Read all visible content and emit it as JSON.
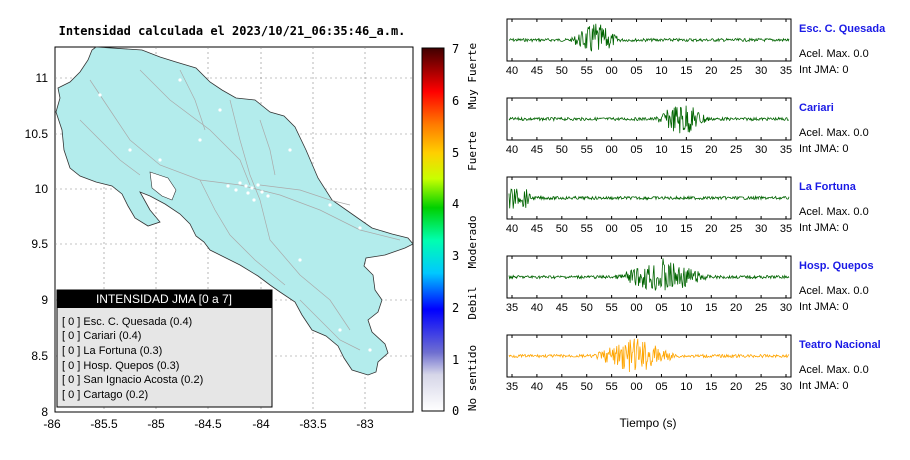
{
  "map": {
    "title": "Intensidad calculada el 2023/10/21_06:35:46_a.m.",
    "x_ticks": [
      "-86",
      "-85.5",
      "-85",
      "-84.5",
      "-84",
      "-83.5",
      "-83"
    ],
    "y_ticks": [
      "11",
      "10.5",
      "10",
      "9.5",
      "9",
      "8.5",
      "8"
    ],
    "land_color": "#b3ecec",
    "legend": {
      "title": "INTENSIDAD JMA [0 a 7]",
      "items": [
        "[ 0 ]  Esc. C. Quesada (0.4)",
        "[ 0 ]  Cariari (0.4)",
        "[ 0 ]  La Fortuna (0.3)",
        "[ 0 ]  Hosp. Quepos (0.3)",
        "[ 0 ]  San Ignacio Acosta (0.2)",
        "[ 0 ]  Cartago (0.2)"
      ]
    }
  },
  "colorbar": {
    "ticks": [
      "0",
      "1",
      "2",
      "3",
      "4",
      "5",
      "6",
      "7"
    ],
    "labels": [
      "No sentido",
      "Debil",
      "Moderado",
      "Fuerte",
      "Muy Fuerte"
    ]
  },
  "chart_data": {
    "type": "line",
    "xlabel": "Tiempo (s)",
    "series": [
      {
        "name": "Esc. C. Quesada",
        "accel_label": "Acel. Max. 0.0",
        "int_label": "Int JMA: 0",
        "color": "#006400",
        "ticks": [
          "40",
          "45",
          "50",
          "55",
          "00",
          "05",
          "10",
          "15",
          "20",
          "25",
          "30",
          "35"
        ],
        "peak_region": [
          0.22,
          0.4
        ]
      },
      {
        "name": "Cariari",
        "accel_label": "Acel. Max. 0.0",
        "int_label": "Int JMA: 0",
        "color": "#006400",
        "ticks": [
          "40",
          "45",
          "50",
          "55",
          "00",
          "05",
          "10",
          "15",
          "20",
          "25",
          "30",
          "35"
        ],
        "peak_region": [
          0.52,
          0.72
        ]
      },
      {
        "name": "La Fortuna",
        "accel_label": "Acel. Max. 0.0",
        "int_label": "Int JMA: 0",
        "color": "#006400",
        "ticks": [
          "40",
          "45",
          "50",
          "55",
          "00",
          "05",
          "10",
          "15",
          "20",
          "25",
          "30",
          "35"
        ],
        "peak_region": [
          0.0,
          0.08
        ]
      },
      {
        "name": "Hosp. Quepos",
        "accel_label": "Acel. Max. 0.0",
        "int_label": "Int JMA: 0",
        "color": "#006400",
        "ticks": [
          "35",
          "40",
          "45",
          "50",
          "55",
          "00",
          "05",
          "10",
          "15",
          "20",
          "25",
          "30"
        ],
        "peak_region": [
          0.38,
          0.72
        ]
      },
      {
        "name": "Teatro Nacional",
        "accel_label": "Acel. Max. 0.0",
        "int_label": "Int JMA: 0",
        "color": "#ffa500",
        "ticks": [
          "35",
          "40",
          "45",
          "50",
          "55",
          "00",
          "05",
          "10",
          "15",
          "20",
          "25",
          "30"
        ],
        "peak_region": [
          0.3,
          0.6
        ]
      }
    ]
  }
}
